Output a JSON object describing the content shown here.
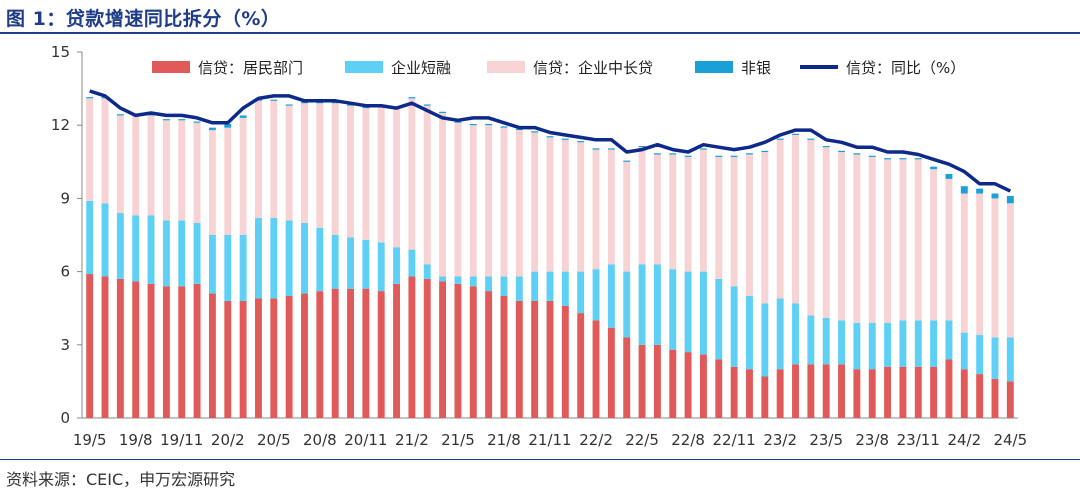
{
  "figure": {
    "title": "图 1：贷款增速同比拆分（%）",
    "source": "资料来源：CEIC，申万宏源研究"
  },
  "colors": {
    "household": "#e05a5a",
    "short_term": "#5fd0f5",
    "mid_long": "#f7d3d3",
    "non_bank": "#1aa0d8",
    "total": "#0d2a8a",
    "title": "#1f3c88"
  },
  "chart_data": {
    "type": "bar",
    "stacked": true,
    "x": [
      "19/5",
      "19/6",
      "19/7",
      "19/8",
      "19/9",
      "19/10",
      "19/11",
      "19/12",
      "20/1",
      "20/2",
      "20/3",
      "20/4",
      "20/5",
      "20/6",
      "20/7",
      "20/8",
      "20/9",
      "20/10",
      "20/11",
      "20/12",
      "21/1",
      "21/2",
      "21/3",
      "21/4",
      "21/5",
      "21/6",
      "21/7",
      "21/8",
      "21/9",
      "21/10",
      "21/11",
      "21/12",
      "22/1",
      "22/2",
      "22/3",
      "22/4",
      "22/5",
      "22/6",
      "22/7",
      "22/8",
      "22/9",
      "22/10",
      "22/11",
      "22/12",
      "23/1",
      "23/2",
      "23/3",
      "23/4",
      "23/5",
      "23/6",
      "23/7",
      "23/8",
      "23/9",
      "23/10",
      "23/11",
      "23/12",
      "24/1",
      "24/2",
      "24/3",
      "24/4",
      "24/5"
    ],
    "xtick_labels": [
      "19/5",
      "19/8",
      "19/11",
      "20/2",
      "20/5",
      "20/8",
      "20/11",
      "21/2",
      "21/5",
      "21/8",
      "21/11",
      "22/2",
      "22/5",
      "22/8",
      "22/11",
      "23/2",
      "23/5",
      "23/8",
      "23/11",
      "24/2",
      "24/5"
    ],
    "ylim": [
      0,
      15
    ],
    "yticks": [
      0,
      3,
      6,
      9,
      12,
      15
    ],
    "series": [
      {
        "name": "信贷：居民部门",
        "kind": "bar",
        "values": [
          5.9,
          5.8,
          5.7,
          5.6,
          5.5,
          5.4,
          5.4,
          5.5,
          5.1,
          4.8,
          4.8,
          4.9,
          4.9,
          5.0,
          5.1,
          5.2,
          5.3,
          5.3,
          5.3,
          5.2,
          5.5,
          5.8,
          5.7,
          5.6,
          5.5,
          5.4,
          5.2,
          5.0,
          4.8,
          4.8,
          4.8,
          4.6,
          4.3,
          4.0,
          3.7,
          3.3,
          3.0,
          3.0,
          2.8,
          2.7,
          2.6,
          2.4,
          2.1,
          2.0,
          1.7,
          2.0,
          2.2,
          2.2,
          2.2,
          2.2,
          2.0,
          2.0,
          2.1,
          2.1,
          2.1,
          2.1,
          2.4,
          2.0,
          1.8,
          1.6,
          1.5
        ]
      },
      {
        "name": "企业短融",
        "kind": "bar",
        "values": [
          3.0,
          3.0,
          2.7,
          2.7,
          2.8,
          2.7,
          2.7,
          2.5,
          2.4,
          2.7,
          2.7,
          3.3,
          3.3,
          3.1,
          2.9,
          2.6,
          2.2,
          2.1,
          2.0,
          2.0,
          1.5,
          1.1,
          0.6,
          0.2,
          0.3,
          0.4,
          0.6,
          0.8,
          1.0,
          1.2,
          1.2,
          1.4,
          1.7,
          2.1,
          2.6,
          2.7,
          3.3,
          3.3,
          3.3,
          3.3,
          3.4,
          3.3,
          3.3,
          3.0,
          3.0,
          2.9,
          2.5,
          2.0,
          1.9,
          1.8,
          1.9,
          1.9,
          1.8,
          1.9,
          1.9,
          1.9,
          1.6,
          1.5,
          1.6,
          1.7,
          1.8
        ]
      },
      {
        "name": "信贷：企业中长贷",
        "kind": "bar",
        "values": [
          4.2,
          4.3,
          4.0,
          4.1,
          4.1,
          4.1,
          4.1,
          4.1,
          4.3,
          4.4,
          4.8,
          4.8,
          4.8,
          4.7,
          4.9,
          5.1,
          5.4,
          5.4,
          5.4,
          5.6,
          5.7,
          6.2,
          6.5,
          6.7,
          6.3,
          6.2,
          6.2,
          6.1,
          6.0,
          5.7,
          5.5,
          5.4,
          5.3,
          4.9,
          4.7,
          4.5,
          4.8,
          4.5,
          4.7,
          4.7,
          5.0,
          5.0,
          5.3,
          5.8,
          6.2,
          6.5,
          6.9,
          7.2,
          7.0,
          6.9,
          6.9,
          6.8,
          6.7,
          6.6,
          6.6,
          6.2,
          5.8,
          5.7,
          5.8,
          5.7,
          5.5
        ]
      },
      {
        "name": "非银",
        "kind": "bar",
        "values": [
          0.05,
          0.05,
          0.05,
          0.05,
          0.05,
          0.05,
          0.05,
          0.05,
          0.1,
          0.15,
          0.1,
          0.05,
          0.05,
          0.05,
          0.05,
          0.05,
          0.05,
          0.05,
          0.05,
          0.05,
          0.05,
          0.05,
          0.05,
          0.05,
          0.05,
          0.05,
          0.05,
          0.05,
          0.05,
          0.05,
          0.05,
          0.05,
          0.05,
          0.05,
          0.05,
          0.05,
          0.05,
          0.05,
          0.05,
          0.05,
          0.05,
          0.05,
          0.05,
          0.05,
          0.05,
          0.05,
          0.05,
          0.05,
          0.05,
          0.05,
          0.05,
          0.05,
          0.05,
          0.05,
          0.05,
          0.1,
          0.2,
          0.3,
          0.2,
          0.2,
          0.3
        ]
      },
      {
        "name": "信贷：同比（%）",
        "kind": "line",
        "values": [
          13.4,
          13.2,
          12.7,
          12.4,
          12.5,
          12.4,
          12.4,
          12.3,
          12.1,
          12.1,
          12.7,
          13.1,
          13.2,
          13.2,
          13.0,
          13.0,
          13.0,
          12.9,
          12.8,
          12.8,
          12.7,
          12.9,
          12.6,
          12.3,
          12.2,
          12.3,
          12.3,
          12.1,
          11.9,
          11.9,
          11.7,
          11.6,
          11.5,
          11.4,
          11.4,
          10.9,
          11.0,
          11.2,
          11.0,
          10.9,
          11.2,
          11.1,
          11.0,
          11.1,
          11.3,
          11.6,
          11.8,
          11.8,
          11.4,
          11.3,
          11.1,
          11.1,
          10.9,
          10.9,
          10.8,
          10.6,
          10.4,
          10.1,
          9.6,
          9.6,
          9.3
        ]
      }
    ],
    "legend_position": "top",
    "grid": false
  }
}
